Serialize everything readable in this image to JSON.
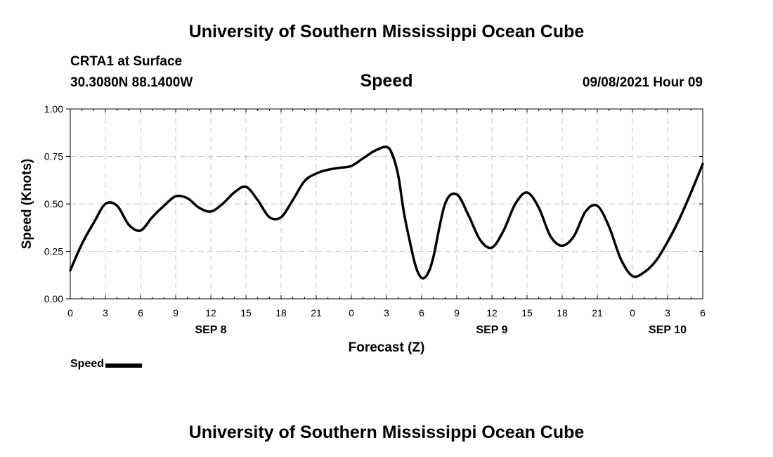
{
  "page": {
    "title_top": "University of Southern Mississippi Ocean Cube",
    "title_bottom": "University of Southern Mississippi Ocean Cube",
    "station": "CRTA1 at Surface",
    "coordinates": "30.3080N  88.1400W",
    "variable": "Speed",
    "timestamp": "09/08/2021 Hour 09"
  },
  "chart_data": {
    "type": "line",
    "title": "Speed",
    "xlabel": "Forecast (Z)",
    "ylabel": "Speed (Knots)",
    "xlim": [
      0,
      54
    ],
    "ylim": [
      0,
      1
    ],
    "grid": true,
    "x_tick_values": [
      0,
      3,
      6,
      9,
      12,
      15,
      18,
      21,
      24,
      27,
      30,
      33,
      36,
      39,
      42,
      45,
      48,
      51,
      54
    ],
    "x_tick_labels": [
      "0",
      "3",
      "6",
      "9",
      "12",
      "15",
      "18",
      "21",
      "0",
      "3",
      "6",
      "9",
      "12",
      "15",
      "18",
      "21",
      "0",
      "3",
      "6"
    ],
    "y_tick_values": [
      0,
      0.25,
      0.5,
      0.75,
      1.0
    ],
    "y_tick_labels": [
      "0.00",
      "0.25",
      "0.50",
      "0.75",
      "1.00"
    ],
    "day_labels": [
      {
        "x": 12,
        "label": "SEP 8"
      },
      {
        "x": 36,
        "label": "SEP 9"
      },
      {
        "x": 51,
        "label": "SEP 10"
      }
    ],
    "legend": {
      "label": "Speed",
      "placement": "bottom-left"
    },
    "series": [
      {
        "name": "Speed",
        "color": "#000000",
        "x": [
          0,
          1,
          2,
          3,
          4,
          5,
          6,
          7,
          8,
          9,
          10,
          11,
          12,
          13,
          14,
          15,
          16,
          17,
          18,
          19,
          20,
          21,
          22,
          23,
          24,
          25,
          26,
          27,
          27.5,
          28,
          28.5,
          29,
          29.5,
          30,
          30.5,
          31,
          32,
          33,
          34,
          35,
          36,
          37,
          38,
          39,
          40,
          41,
          42,
          43,
          44,
          45,
          46,
          47,
          48,
          49,
          50,
          51,
          52,
          53,
          54
        ],
        "values": [
          0.15,
          0.29,
          0.4,
          0.5,
          0.49,
          0.39,
          0.36,
          0.43,
          0.49,
          0.54,
          0.53,
          0.48,
          0.46,
          0.5,
          0.56,
          0.59,
          0.52,
          0.43,
          0.43,
          0.52,
          0.62,
          0.66,
          0.68,
          0.69,
          0.7,
          0.74,
          0.78,
          0.8,
          0.76,
          0.65,
          0.45,
          0.3,
          0.17,
          0.11,
          0.13,
          0.22,
          0.5,
          0.55,
          0.44,
          0.31,
          0.27,
          0.36,
          0.5,
          0.56,
          0.48,
          0.33,
          0.28,
          0.33,
          0.46,
          0.49,
          0.38,
          0.21,
          0.12,
          0.14,
          0.2,
          0.3,
          0.42,
          0.56,
          0.71
        ]
      }
    ]
  }
}
